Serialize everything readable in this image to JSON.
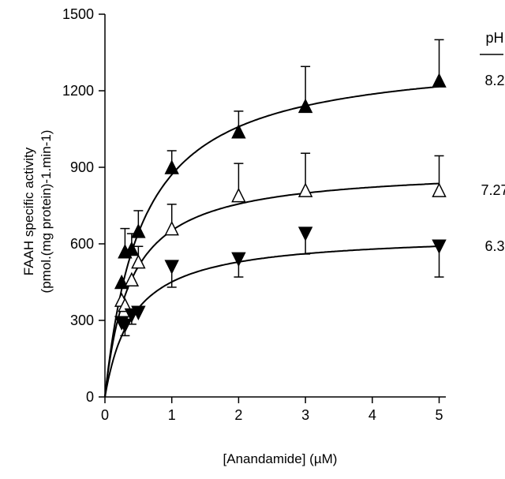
{
  "chart_data": {
    "type": "scatter",
    "xlabel": "[Anandamide] (µM)",
    "ylabel_line1": "FAAH specific activity",
    "ylabel_line2": "(pmol.(mg protein)-1.min-1)",
    "xlim": [
      0,
      5.1
    ],
    "ylim": [
      0,
      1500
    ],
    "xticks": [
      0,
      1,
      2,
      3,
      4,
      5
    ],
    "yticks": [
      0,
      300,
      600,
      900,
      1200,
      1500
    ],
    "grid": false,
    "legend_title": "pH",
    "series": [
      {
        "name": "8.2",
        "marker": "triangle-up-filled",
        "x": [
          0.25,
          0.3,
          0.4,
          0.5,
          1,
          2,
          3,
          5
        ],
        "y": [
          450,
          570,
          580,
          650,
          900,
          1040,
          1140,
          1240
        ],
        "error_plus": [
          0,
          90,
          60,
          80,
          65,
          80,
          155,
          160
        ],
        "fit": {
          "vmax": 1350,
          "km": 0.55
        }
      },
      {
        "name": "7.27",
        "marker": "triangle-up-open",
        "x": [
          0.25,
          0.3,
          0.4,
          0.5,
          1,
          2,
          3,
          5
        ],
        "y": [
          380,
          360,
          460,
          530,
          660,
          790,
          810,
          810
        ],
        "error_plus": [
          0,
          0,
          0,
          60,
          95,
          125,
          145,
          135
        ],
        "fit": {
          "vmax": 900,
          "km": 0.38
        }
      },
      {
        "name": "6.3",
        "marker": "triangle-down-filled",
        "x": [
          0.25,
          0.3,
          0.4,
          0.5,
          1,
          2,
          3,
          5
        ],
        "y": [
          290,
          280,
          320,
          330,
          510,
          540,
          640,
          590
        ],
        "error_minus": [
          0,
          40,
          35,
          0,
          80,
          70,
          80,
          120
        ],
        "fit": {
          "vmax": 640,
          "km": 0.42
        }
      }
    ]
  }
}
